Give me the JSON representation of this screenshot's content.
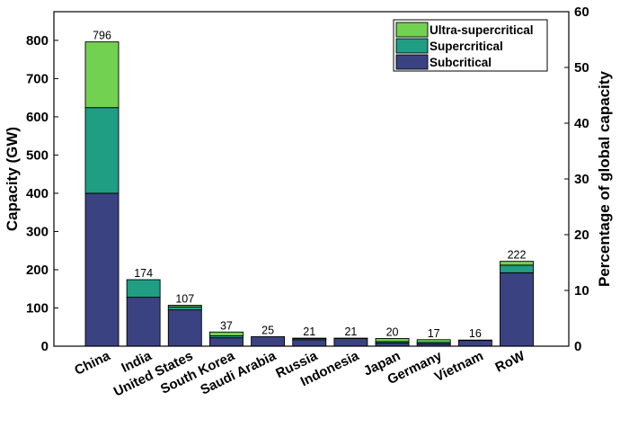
{
  "chart_data": {
    "type": "bar",
    "stacked": true,
    "categories": [
      "China",
      "India",
      "United States",
      "South Korea",
      "Saudi Arabia",
      "Russia",
      "Indonesia",
      "Japan",
      "Germany",
      "Vietnam",
      "RoW"
    ],
    "series": [
      {
        "name": "Subcritical",
        "color": "#3b4282",
        "values": [
          400,
          128,
          95,
          22,
          25,
          17,
          20,
          8,
          6,
          15,
          192
        ]
      },
      {
        "name": "Supercritical",
        "color": "#1f9e84",
        "values": [
          224,
          46,
          8,
          5,
          0,
          3,
          0,
          4,
          4,
          1,
          20
        ]
      },
      {
        "name": "Ultra-supercritical",
        "color": "#72d150",
        "values": [
          172,
          0,
          4,
          10,
          0,
          1,
          1,
          8,
          7,
          0,
          10
        ]
      }
    ],
    "totals": [
      "796",
      "174",
      "107",
      "37",
      "25",
      "21",
      "21",
      "20",
      "17",
      "16",
      "222"
    ],
    "legend_order": [
      "Ultra-supercritical",
      "Supercritical",
      "Subcritical"
    ],
    "legend_position": "top-right",
    "ylabel": "Capacity (GW)",
    "ylabel_right": "Percentage of global capacity",
    "ylim": [
      0,
      875
    ],
    "yticks": [
      0,
      100,
      200,
      300,
      400,
      500,
      600,
      700,
      800
    ],
    "ylim_right": [
      0,
      60
    ],
    "yticks_right": [
      0,
      10,
      20,
      30,
      40,
      50,
      60
    ],
    "grid": false
  }
}
